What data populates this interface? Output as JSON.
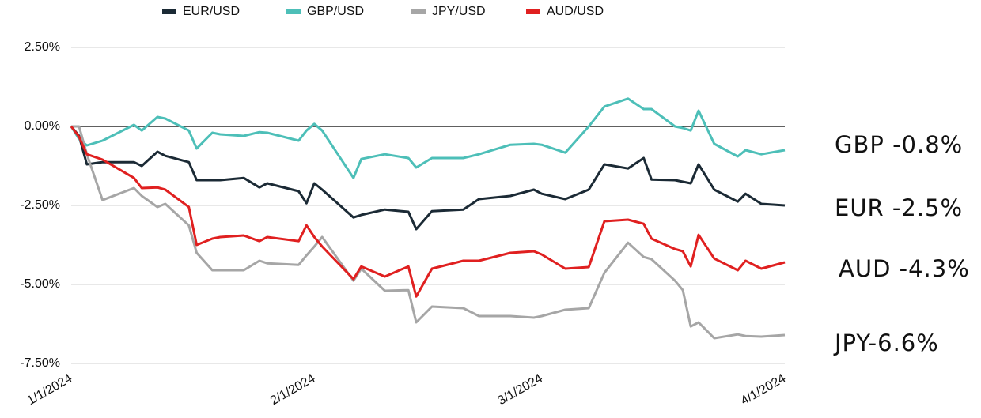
{
  "chart_data": {
    "type": "line",
    "x": [
      "1/1/2024",
      "1/2/2024",
      "1/3/2024",
      "1/5/2024",
      "1/9/2024",
      "1/10/2024",
      "1/12/2024",
      "1/13/2024",
      "1/16/2024",
      "1/17/2024",
      "1/19/2024",
      "1/20/2024",
      "1/23/2024",
      "1/25/2024",
      "1/26/2024",
      "1/30/2024",
      "1/31/2024",
      "2/1/2024",
      "2/2/2024",
      "2/6/2024",
      "2/7/2024",
      "2/10/2024",
      "2/13/2024",
      "2/14/2024",
      "2/16/2024",
      "2/20/2024",
      "2/22/2024",
      "2/26/2024",
      "2/29/2024",
      "3/1/2024",
      "3/4/2024",
      "3/7/2024",
      "3/9/2024",
      "3/12/2024",
      "3/14/2024",
      "3/15/2024",
      "3/18/2024",
      "3/19/2024",
      "3/20/2024",
      "3/21/2024",
      "3/23/2024",
      "3/26/2024",
      "3/27/2024",
      "3/29/2024",
      "4/1/2024"
    ],
    "series": [
      {
        "name": "EUR/USD",
        "color": "#1b2a35",
        "values": [
          0,
          -0.3,
          -1.2,
          -1.13,
          -1.13,
          -1.25,
          -0.8,
          -0.93,
          -1.13,
          -1.7,
          -1.7,
          -1.7,
          -1.63,
          -1.93,
          -1.8,
          -2.05,
          -2.43,
          -1.8,
          -2,
          -2.88,
          -2.8,
          -2.63,
          -2.7,
          -3.25,
          -2.68,
          -2.63,
          -2.3,
          -2.2,
          -2,
          -2.13,
          -2.3,
          -2,
          -1.2,
          -1.33,
          -1,
          -1.68,
          -1.7,
          -1.75,
          -1.8,
          -1.2,
          -2,
          -2.38,
          -2.13,
          -2.45,
          -2.5
        ]
      },
      {
        "name": "GBP/USD",
        "color": "#4dbfb8",
        "values": [
          0,
          -0.4,
          -0.6,
          -0.45,
          0.05,
          -0.13,
          0.3,
          0.25,
          -0.13,
          -0.7,
          -0.2,
          -0.25,
          -0.3,
          -0.18,
          -0.2,
          -0.45,
          -0.13,
          0.08,
          -0.13,
          -1.63,
          -1.03,
          -0.88,
          -1,
          -1.3,
          -1,
          -1,
          -0.88,
          -0.58,
          -0.55,
          -0.58,
          -0.83,
          0,
          0.63,
          0.88,
          0.55,
          0.55,
          0,
          -0.05,
          -0.13,
          0.5,
          -0.55,
          -0.95,
          -0.75,
          -0.88,
          -0.75
        ]
      },
      {
        "name": "JPY/USD",
        "color": "#a6a6a6",
        "values": [
          0,
          0,
          -0.88,
          -2.33,
          -1.95,
          -2.2,
          -2.55,
          -2.45,
          -3.13,
          -4,
          -4.55,
          -4.55,
          -4.55,
          -4.25,
          -4.33,
          -4.38,
          -4.08,
          -3.8,
          -3.5,
          -4.88,
          -4.5,
          -5.2,
          -5.18,
          -6.2,
          -5.7,
          -5.75,
          -6,
          -6,
          -6.05,
          -6,
          -5.8,
          -5.75,
          -4.63,
          -3.68,
          -4.13,
          -4.2,
          -4.88,
          -5.18,
          -6.33,
          -6.2,
          -6.7,
          -6.58,
          -6.63,
          -6.65,
          -6.6
        ]
      },
      {
        "name": "AUD/USD",
        "color": "#e02020",
        "values": [
          0,
          -0.33,
          -0.88,
          -1.05,
          -1.63,
          -1.95,
          -1.93,
          -2,
          -2.55,
          -3.75,
          -3.55,
          -3.5,
          -3.45,
          -3.63,
          -3.5,
          -3.63,
          -3.13,
          -3.5,
          -3.8,
          -4.83,
          -4.43,
          -4.75,
          -4.43,
          -5.38,
          -4.5,
          -4.25,
          -4.25,
          -4,
          -3.95,
          -4.05,
          -4.5,
          -4.45,
          -3,
          -2.95,
          -3.08,
          -3.55,
          -3.88,
          -3.95,
          -4.43,
          -3.43,
          -4.18,
          -4.55,
          -4.25,
          -4.5,
          -4.3
        ]
      }
    ],
    "xlim": [
      "1/1/2024",
      "4/1/2024"
    ],
    "xticks": [
      "1/1/2024",
      "2/1/2024",
      "3/1/2024",
      "4/1/2024"
    ],
    "ylim": [
      -7.5,
      2.5
    ],
    "yticks": [
      {
        "value": -7.5,
        "label": "-7.50%"
      },
      {
        "value": -5,
        "label": "-5.00%"
      },
      {
        "value": -2.5,
        "label": "-2.50%"
      },
      {
        "value": 0,
        "label": "0.00%"
      },
      {
        "value": 2.5,
        "label": "2.50%"
      }
    ],
    "grid": true,
    "legend": "top",
    "annotations": [
      {
        "text": "GBP -0.8%",
        "color": "#4dbfb8"
      },
      {
        "text": "EUR -2.5%",
        "color": "#1b2a35"
      },
      {
        "text": "AUD -4.3%",
        "color": "#e02020"
      },
      {
        "text": "JPY-6.6%",
        "color": "#a6a6a6"
      }
    ]
  }
}
